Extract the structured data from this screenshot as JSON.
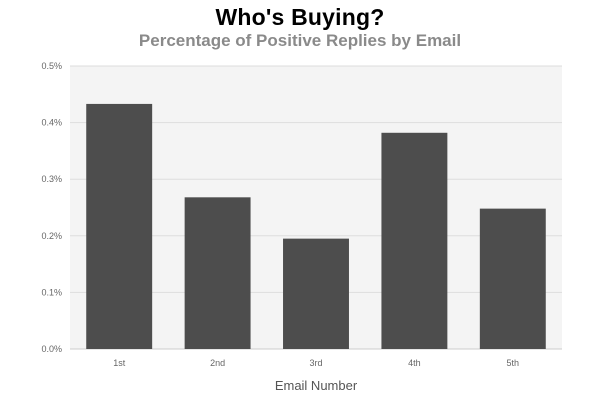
{
  "chart_data": {
    "type": "bar",
    "title": "Who's Buying?",
    "subtitle": "Percentage of Positive Replies by Email",
    "xlabel": "Email Number",
    "ylabel": "",
    "categories": [
      "1st",
      "2nd",
      "3rd",
      "4th",
      "5th"
    ],
    "values": [
      0.433,
      0.268,
      0.195,
      0.382,
      0.248
    ],
    "ylim": [
      0,
      0.5
    ],
    "yticks": [
      0,
      0.1,
      0.2,
      0.3,
      0.4,
      0.5
    ],
    "ytick_labels": [
      "0.0%",
      "0.1%",
      "0.2%",
      "0.3%",
      "0.4%",
      "0.5%"
    ],
    "grid": true,
    "legend": "none",
    "colors": {
      "bar": "#4d4d4d",
      "plot_background": "#f4f4f4",
      "grid": "#dddddd"
    }
  }
}
